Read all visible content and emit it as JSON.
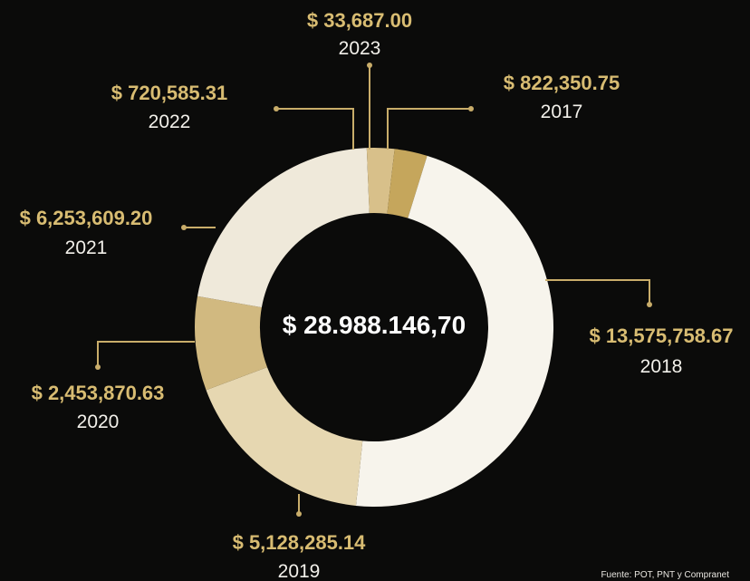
{
  "chart_data": {
    "type": "pie",
    "total_label": "$ 28.988.146,70",
    "source": "Fuente: POT, PNT y Compranet",
    "slices": [
      {
        "year": "2017",
        "amount_label": "$ 822,350.75",
        "value": 822350.75,
        "color": "#c5a65c"
      },
      {
        "year": "2018",
        "amount_label": "$ 13,575,758.67",
        "value": 13575758.67,
        "color": "#f7f4ec"
      },
      {
        "year": "2019",
        "amount_label": "$ 5,128,285.14",
        "value": 5128285.14,
        "color": "#e6d7b1"
      },
      {
        "year": "2020",
        "amount_label": "$ 2,453,870.63",
        "value": 2453870.63,
        "color": "#d1b980"
      },
      {
        "year": "2021",
        "amount_label": "$ 6,253,609.20",
        "value": 6253609.2,
        "color": "#efe9da"
      },
      {
        "year": "2022",
        "amount_label": "$ 720,585.31",
        "value": 720585.31,
        "color": "#d8c08a"
      },
      {
        "year": "2023",
        "amount_label": "$ 33,687.00",
        "value": 33687.0,
        "color": "#c5a65c"
      }
    ]
  }
}
